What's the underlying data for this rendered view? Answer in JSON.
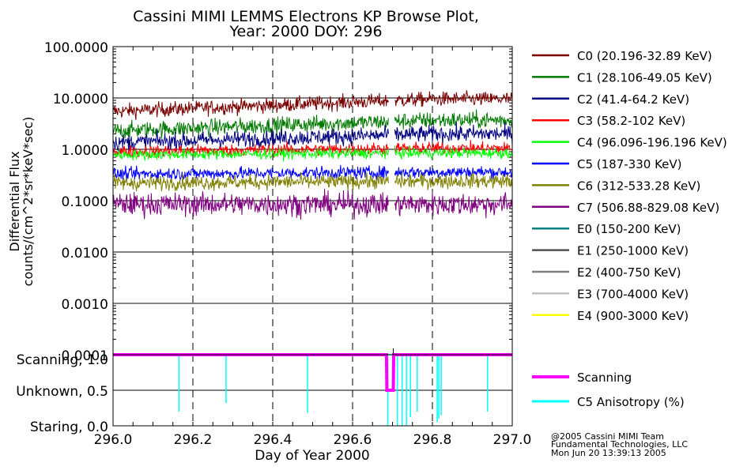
{
  "chart_data": [
    {
      "type": "line",
      "title": "Cassini MIMI LEMMS Electrons KP Browse Plot,",
      "subtitle": "Year: 2000 DOY: 296",
      "xlabel": "Day of Year 2000",
      "ylabel_line1": "Differential Flux",
      "ylabel_line2": "counts/(cm^2*sr*keV*sec)",
      "yscale": "log",
      "xlim": [
        296.0,
        297.0
      ],
      "ylim": [
        0.0001,
        100.0
      ],
      "x_ticks": [
        {
          "value": 296.0,
          "label": "296.0"
        },
        {
          "value": 296.2,
          "label": "296.2"
        },
        {
          "value": 296.4,
          "label": "296.4"
        },
        {
          "value": 296.6,
          "label": "296.6"
        },
        {
          "value": 296.8,
          "label": "296.8"
        },
        {
          "value": 297.0,
          "label": "297.0"
        }
      ],
      "y_ticks": [
        {
          "value": 100,
          "label": "100.0000"
        },
        {
          "value": 10,
          "label": "10.0000"
        },
        {
          "value": 1,
          "label": "1.0000"
        },
        {
          "value": 0.1,
          "label": "0.1000"
        },
        {
          "value": 0.01,
          "label": "0.0100"
        },
        {
          "value": 0.001,
          "label": "0.0010"
        },
        {
          "value": 0.0001,
          "label": "0.0001"
        }
      ],
      "data_gap": [
        296.69,
        296.705
      ],
      "series": [
        {
          "name": "C0 (20.196-32.89 KeV)",
          "color": "#7a0000",
          "start": 5.5,
          "end": 9.5,
          "noise": 0.07
        },
        {
          "name": "C1 (28.106-49.05 KeV)",
          "color": "#007a00",
          "start": 2.3,
          "end": 3.7,
          "noise": 0.08
        },
        {
          "name": "C2 (41.4-64.2 KeV)",
          "color": "#000080",
          "start": 1.35,
          "end": 2.0,
          "noise": 0.08
        },
        {
          "name": "C3 (58.2-102 KeV)",
          "color": "#ff0000",
          "start": 0.9,
          "end": 1.05,
          "noise": 0.06
        },
        {
          "name": "C4 (96.096-196.196 KeV)",
          "color": "#00ff00",
          "start": 0.78,
          "end": 0.85,
          "noise": 0.05
        },
        {
          "name": "C5 (187-330 KeV)",
          "color": "#0000ff",
          "start": 0.33,
          "end": 0.36,
          "noise": 0.06
        },
        {
          "name": "C6 (312-533.28 KeV)",
          "color": "#808000",
          "start": 0.22,
          "end": 0.24,
          "noise": 0.07
        },
        {
          "name": "C7 (506.88-829.08 KeV)",
          "color": "#800080",
          "start": 0.085,
          "end": 0.085,
          "noise": 0.11
        },
        {
          "name": "E0 (150-200 KeV)",
          "color": "#008080",
          "start": null,
          "end": null,
          "noise": 0
        },
        {
          "name": "E1 (250-1000 KeV)",
          "color": "#505050",
          "start": null,
          "end": null,
          "noise": 0
        },
        {
          "name": "E2 (400-750 KeV)",
          "color": "#808080",
          "start": null,
          "end": null,
          "noise": 0
        },
        {
          "name": "E3 (700-4000 KeV)",
          "color": "#c0c0c0",
          "start": null,
          "end": null,
          "noise": 0
        },
        {
          "name": "E4 (900-3000 KeV)",
          "color": "#ffff00",
          "start": null,
          "end": null,
          "noise": 0
        }
      ]
    },
    {
      "type": "line",
      "y_ticks": [
        {
          "value": 1.0,
          "label": "Scanning, 1.0"
        },
        {
          "value": 0.5,
          "label": "Unknown, 0.5"
        },
        {
          "value": 0.0,
          "label": "Staring, 0.0"
        }
      ],
      "ylim": [
        0.0,
        1.0
      ],
      "xlim": [
        296.0,
        297.0
      ],
      "top_marker_x": 296.702,
      "series": [
        {
          "name": "Scanning",
          "color": "#ff00ff",
          "points": [
            [
              296.0,
              1.0
            ],
            [
              296.685,
              1.0
            ],
            [
              296.686,
              0.5
            ],
            [
              296.702,
              0.5
            ],
            [
              296.703,
              1.0
            ],
            [
              297.0,
              1.0
            ]
          ]
        },
        {
          "name": "C5 Anisotropy (%)",
          "color": "#00ffff",
          "baseline": 1.0,
          "spikes": [
            [
              296.165,
              0.2
            ],
            [
              296.283,
              0.32
            ],
            [
              296.487,
              0.18
            ],
            [
              296.688,
              0.0
            ],
            [
              296.712,
              0.0
            ],
            [
              296.724,
              0.0
            ],
            [
              296.735,
              0.0
            ],
            [
              296.745,
              0.12
            ],
            [
              296.762,
              0.2
            ],
            [
              296.812,
              0.05
            ],
            [
              296.816,
              0.1
            ],
            [
              296.822,
              0.15
            ],
            [
              296.938,
              0.2
            ]
          ]
        }
      ]
    }
  ],
  "footer": {
    "line1": "@2005 Cassini MIMI Team",
    "line2": "Fundamental Technologies, LLC",
    "line3": "Mon Jun 20 13:39:13 2005"
  }
}
